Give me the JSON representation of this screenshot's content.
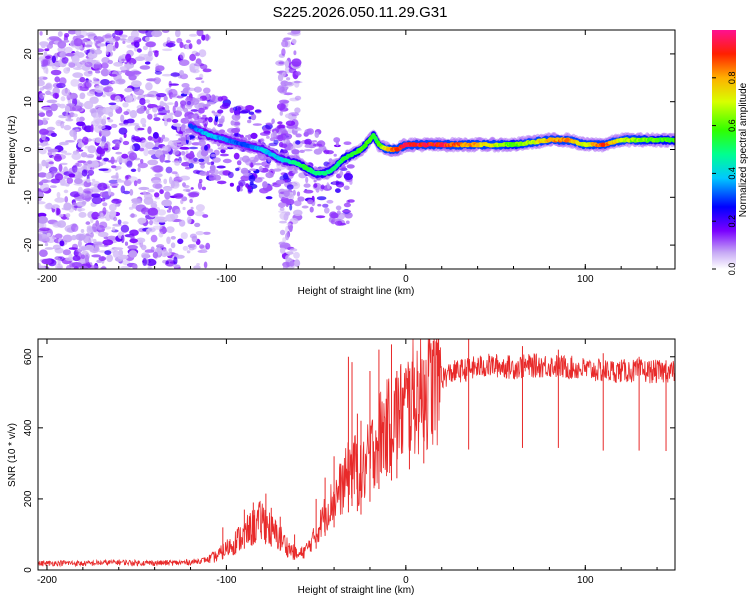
{
  "title": "S225.2026.050.11.29.G31",
  "chart_data": [
    {
      "type": "heatmap",
      "xlabel": "Height of straight line (km)",
      "ylabel": "Frequency (Hz)",
      "xlim": [
        -205,
        150
      ],
      "ylim": [
        -25,
        25
      ],
      "xticks": [
        -200,
        -100,
        0,
        100
      ],
      "xtick_labels": [
        "-200",
        "-100",
        "0",
        "100"
      ],
      "yticks": [
        -20,
        -10,
        0,
        10,
        20
      ],
      "ytick_labels": [
        "-20",
        "-10",
        "0",
        "10",
        "20"
      ],
      "colorbar": {
        "label": "Normalized spectral amplitude",
        "range": [
          0,
          1
        ],
        "ticks": [
          0.0,
          0.2,
          0.4,
          0.6,
          0.8
        ],
        "tick_labels": [
          "0.0",
          "0.2",
          "0.4",
          "0.6",
          "0.8"
        ]
      },
      "ridge": {
        "height_km": [
          -120,
          -110,
          -100,
          -90,
          -80,
          -70,
          -60,
          -55,
          -50,
          -45,
          -40,
          -35,
          -30,
          -25,
          -20,
          -18,
          -15,
          -10,
          -5,
          0,
          10,
          20,
          40,
          60,
          80,
          90,
          100,
          110,
          120,
          140,
          150
        ],
        "frequency_hz": [
          5,
          3,
          2,
          1,
          0,
          -2,
          -3,
          -4,
          -5,
          -5,
          -4,
          -2,
          -1,
          0,
          2,
          3,
          1,
          0,
          0,
          1,
          1,
          1,
          1,
          1,
          2,
          2,
          1,
          1,
          2,
          2,
          2
        ],
        "amplitude": [
          0.3,
          0.4,
          0.35,
          0.3,
          0.4,
          0.4,
          0.5,
          0.55,
          0.5,
          0.5,
          0.5,
          0.55,
          0.55,
          0.6,
          0.6,
          0.55,
          0.6,
          0.8,
          0.9,
          0.95,
          0.95,
          0.95,
          0.8,
          0.6,
          0.8,
          0.85,
          0.7,
          0.9,
          0.7,
          0.6,
          0.6
        ]
      }
    },
    {
      "type": "line",
      "xlabel": "Height of straight line (km)",
      "ylabel": "SNR (10 * v/v)",
      "xlim": [
        -205,
        150
      ],
      "ylim": [
        0,
        650
      ],
      "xticks": [
        -200,
        -100,
        0,
        100
      ],
      "xtick_labels": [
        "-200",
        "-100",
        "0",
        "100"
      ],
      "yticks": [
        0,
        200,
        400,
        600
      ],
      "ytick_labels": [
        "0",
        "200",
        "400",
        "600"
      ],
      "color": "#e82a2a",
      "series": [
        {
          "name": "SNR",
          "x": [
            -205,
            -190,
            -180,
            -170,
            -160,
            -150,
            -140,
            -130,
            -120,
            -110,
            -105,
            -100,
            -95,
            -90,
            -85,
            -80,
            -78,
            -75,
            -70,
            -65,
            -60,
            -55,
            -50,
            -45,
            -40,
            -35,
            -31,
            -30,
            -25,
            -20,
            -15,
            -10,
            -8,
            -5,
            0,
            5,
            10,
            15,
            20,
            25,
            30,
            35,
            40,
            45,
            50,
            60,
            70,
            80,
            90,
            100,
            110,
            120,
            130,
            140,
            150
          ],
          "y": [
            18,
            20,
            18,
            20,
            22,
            20,
            20,
            20,
            22,
            30,
            40,
            60,
            80,
            100,
            120,
            140,
            130,
            110,
            90,
            60,
            40,
            60,
            100,
            160,
            200,
            240,
            280,
            300,
            260,
            320,
            380,
            400,
            420,
            430,
            460,
            490,
            500,
            520,
            540,
            555,
            560,
            565,
            570,
            575,
            575,
            570,
            575,
            575,
            570,
            565,
            560,
            560,
            560,
            558,
            558
          ]
        }
      ],
      "spikes": {
        "x": [
          -102,
          -90,
          -85,
          -78,
          -75,
          -70,
          -62,
          -50,
          -45,
          -40,
          -32,
          -30,
          -27,
          -25,
          -20,
          -15,
          -8,
          -5,
          2,
          10,
          35,
          65,
          85,
          110,
          130,
          145
        ],
        "y": [
          120,
          170,
          190,
          215,
          175,
          150,
          100,
          200,
          260,
          320,
          600,
          585,
          440,
          420,
          560,
          620,
          635,
          560,
          560,
          590,
          650,
          630,
          620,
          610,
          600,
          590
        ]
      }
    }
  ]
}
